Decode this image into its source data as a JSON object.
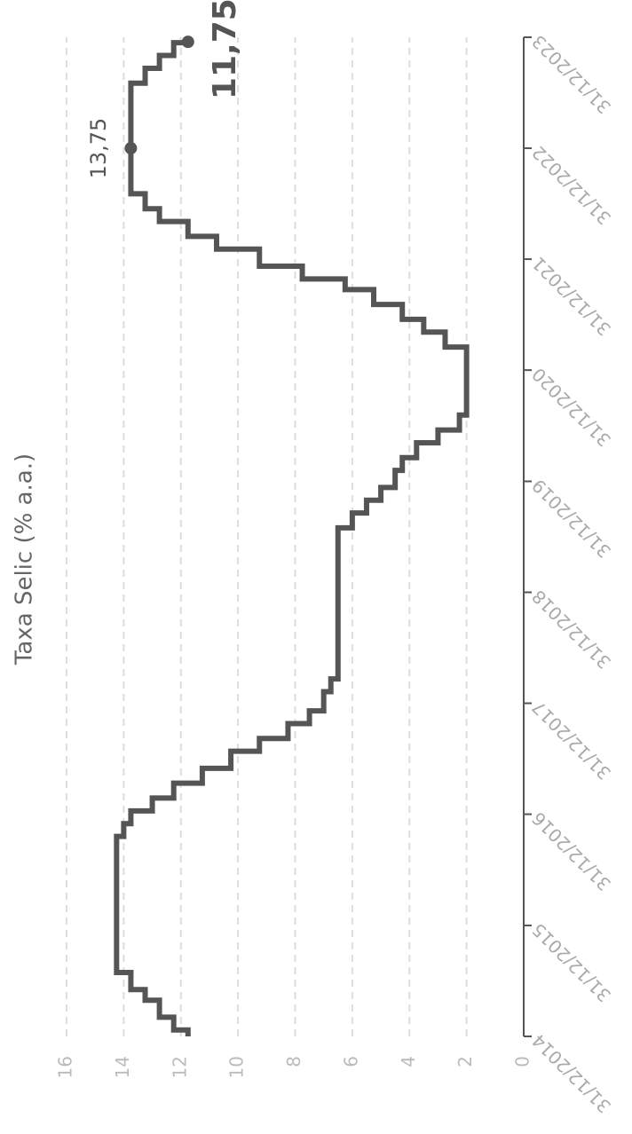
{
  "chart_data": {
    "type": "line",
    "step": "post",
    "title": "Taxa Selic (% a.a.)",
    "color": "#555555",
    "x": [
      "31/12/2014",
      "21/01/2015",
      "04/03/2015",
      "29/04/2015",
      "03/06/2015",
      "29/07/2015",
      "19/10/2016",
      "30/11/2016",
      "11/01/2017",
      "22/02/2017",
      "12/04/2017",
      "31/05/2017",
      "26/07/2017",
      "06/09/2017",
      "25/10/2017",
      "06/12/2017",
      "07/02/2018",
      "21/03/2018",
      "31/07/2019",
      "18/09/2019",
      "30/10/2019",
      "11/12/2019",
      "05/02/2020",
      "18/03/2020",
      "06/05/2020",
      "17/06/2020",
      "05/08/2020",
      "17/03/2021",
      "05/05/2021",
      "16/06/2021",
      "04/08/2021",
      "22/09/2021",
      "27/10/2021",
      "08/12/2021",
      "02/02/2022",
      "16/03/2022",
      "04/05/2022",
      "15/06/2022",
      "03/08/2022",
      "02/08/2023",
      "20/09/2023",
      "01/11/2023",
      "13/12/2023",
      "16/12/2023"
    ],
    "values": [
      11.75,
      12.25,
      12.75,
      13.25,
      13.75,
      14.25,
      14,
      13.75,
      13,
      12.25,
      11.25,
      10.25,
      9.25,
      8.25,
      7.5,
      7,
      6.75,
      6.5,
      6,
      5.5,
      5,
      4.5,
      4.25,
      3.75,
      3,
      2.25,
      2,
      2.75,
      3.5,
      4.25,
      5.25,
      6.25,
      7.75,
      9.25,
      10.75,
      11.75,
      12.75,
      13.25,
      13.75,
      13.25,
      12.75,
      12.25,
      11.75,
      11.75
    ],
    "markers": [
      {
        "x": "31/12/2022",
        "value": 13.75,
        "label": "13,75"
      },
      {
        "x": "16/12/2023",
        "value": 11.75,
        "label": "11,75"
      }
    ],
    "xlim": [
      "31/12/2014",
      "31/12/2023"
    ],
    "xticks": [
      "31/12/2014",
      "31/12/2015",
      "31/12/2016",
      "31/12/2017",
      "31/12/2018",
      "31/12/2019",
      "31/12/2020",
      "31/12/2021",
      "31/12/2022",
      "31/12/2023"
    ],
    "ylim": [
      0,
      16
    ],
    "yticks": [
      0,
      2,
      4,
      6,
      8,
      10,
      12,
      14,
      16
    ],
    "grid": true
  }
}
